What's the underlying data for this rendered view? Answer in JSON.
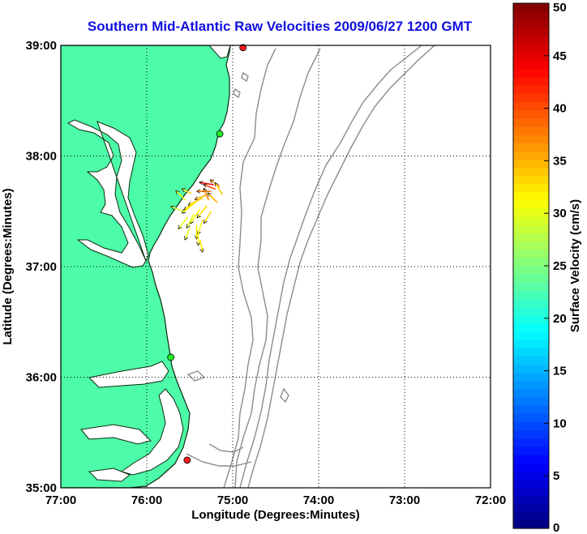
{
  "title": "Southern Mid-Atlantic Raw Velocities 2009/06/27 1200 GMT",
  "map": {
    "xlabel": "Longitude (Degrees:Minutes)",
    "ylabel": "Latitude (Degrees:Minutes)",
    "lon_range": [
      -77,
      -72
    ],
    "lat_range": [
      35,
      39
    ],
    "x_ticks": [
      {
        "value": -77,
        "label": "77:00"
      },
      {
        "value": -76,
        "label": "76:00"
      },
      {
        "value": -75,
        "label": "75:00"
      },
      {
        "value": -74,
        "label": "74:00"
      },
      {
        "value": -73,
        "label": "73:00"
      },
      {
        "value": -72,
        "label": "72:00"
      }
    ],
    "y_ticks": [
      {
        "value": 39,
        "label": "39:00"
      },
      {
        "value": 38,
        "label": "38:00"
      },
      {
        "value": 37,
        "label": "37:00"
      },
      {
        "value": 36,
        "label": "36:00"
      },
      {
        "value": 35,
        "label": "35:00"
      }
    ],
    "grid": "dotted",
    "land_color": "#4dfca8",
    "water_color": "#ffffff",
    "bathymetry_color": "#8c8c8c",
    "stations": [
      {
        "name": "",
        "lon": -74.88,
        "lat": 38.98,
        "color": "#ff1a1a"
      },
      {
        "name": "",
        "lon": -75.15,
        "lat": 38.2,
        "color": "#22ee22"
      },
      {
        "name": "",
        "lon": -75.72,
        "lat": 36.18,
        "color": "#22ee22"
      },
      {
        "name": "",
        "lon": -75.53,
        "lat": 35.25,
        "color": "#ff1a1a"
      }
    ]
  },
  "colorbar": {
    "label": "Surface Velocity (cm/s)",
    "min": 0,
    "max": 50,
    "ticks": [
      "0",
      "5",
      "10",
      "15",
      "20",
      "25",
      "30",
      "35",
      "40",
      "45",
      "50"
    ],
    "colormap": "jet"
  },
  "chart_data": {
    "type": "scatter",
    "title": "Southern Mid-Atlantic Raw Velocities 2009/06/27 1200 GMT",
    "xlabel": "Longitude (Degrees:Minutes)",
    "ylabel": "Latitude (Degrees:Minutes)",
    "xlim": [
      -77,
      -72
    ],
    "ylim": [
      35,
      39
    ],
    "grid": true,
    "series": [
      {
        "values": [
          {
            "lon": -75.22,
            "lat": 37.74,
            "u": -0.3,
            "v": 0.05,
            "speed": 44
          },
          {
            "lon": -75.2,
            "lat": 37.7,
            "u": -0.25,
            "v": 0.1,
            "speed": 40
          },
          {
            "lon": -75.25,
            "lat": 37.68,
            "u": -0.3,
            "v": 0.0,
            "speed": 38
          },
          {
            "lon": -75.15,
            "lat": 37.72,
            "u": -0.2,
            "v": 0.15,
            "speed": 36
          },
          {
            "lon": -75.3,
            "lat": 37.65,
            "u": -0.25,
            "v": -0.1,
            "speed": 35
          },
          {
            "lon": -75.35,
            "lat": 37.62,
            "u": -0.3,
            "v": -0.15,
            "speed": 34
          },
          {
            "lon": -75.4,
            "lat": 37.6,
            "u": -0.3,
            "v": -0.2,
            "speed": 33
          },
          {
            "lon": -75.45,
            "lat": 37.57,
            "u": -0.25,
            "v": -0.2,
            "speed": 32
          },
          {
            "lon": -75.3,
            "lat": 37.55,
            "u": -0.2,
            "v": -0.25,
            "speed": 33
          },
          {
            "lon": -75.38,
            "lat": 37.52,
            "u": -0.2,
            "v": -0.3,
            "speed": 31
          },
          {
            "lon": -75.45,
            "lat": 37.48,
            "u": -0.15,
            "v": -0.3,
            "speed": 30
          },
          {
            "lon": -75.52,
            "lat": 37.45,
            "u": -0.2,
            "v": -0.25,
            "speed": 30
          },
          {
            "lon": -75.35,
            "lat": 37.42,
            "u": -0.1,
            "v": -0.3,
            "speed": 31
          },
          {
            "lon": -75.25,
            "lat": 37.5,
            "u": -0.15,
            "v": -0.25,
            "speed": 33
          },
          {
            "lon": -75.18,
            "lat": 37.58,
            "u": -0.2,
            "v": 0.2,
            "speed": 35
          },
          {
            "lon": -75.12,
            "lat": 37.65,
            "u": -0.15,
            "v": 0.25,
            "speed": 34
          },
          {
            "lon": -75.42,
            "lat": 37.38,
            "u": 0.0,
            "v": -0.3,
            "speed": 32
          },
          {
            "lon": -75.4,
            "lat": 37.3,
            "u": 0.0,
            "v": -0.25,
            "speed": 31
          },
          {
            "lon": -75.38,
            "lat": 37.24,
            "u": 0.05,
            "v": -0.25,
            "speed": 32
          },
          {
            "lon": -75.5,
            "lat": 37.35,
            "u": -0.1,
            "v": -0.25,
            "speed": 30
          },
          {
            "lon": -75.58,
            "lat": 37.5,
            "u": -0.25,
            "v": 0.1,
            "speed": 29
          },
          {
            "lon": -75.55,
            "lat": 37.6,
            "u": -0.2,
            "v": 0.2,
            "speed": 30
          },
          {
            "lon": -75.48,
            "lat": 37.66,
            "u": -0.2,
            "v": 0.1,
            "speed": 33
          },
          {
            "lon": -75.28,
            "lat": 37.6,
            "u": -0.1,
            "v": 0.25,
            "speed": 37
          }
        ]
      }
    ]
  }
}
